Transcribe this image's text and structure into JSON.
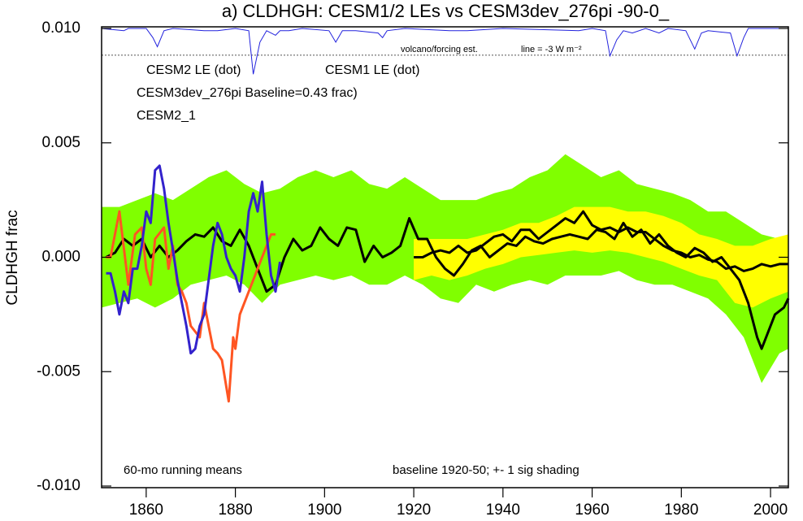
{
  "chart_data": {
    "type": "line",
    "title": "a) CLDHGH: CESM1/2 LEs vs CESM3dev_276pi -90-0_",
    "y_label": "CLDHGH frac",
    "xlim": [
      1850,
      2004
    ],
    "ylim": [
      -0.01,
      0.01
    ],
    "xticks": [
      1860,
      1880,
      1900,
      1920,
      1940,
      1960,
      1980,
      2000
    ],
    "yticks": [
      {
        "value": -0.01,
        "label": "-0.010"
      },
      {
        "value": -0.005,
        "label": "-0.005"
      },
      {
        "value": 0,
        "label": "0.000"
      },
      {
        "value": 0.005,
        "label": "0.005"
      },
      {
        "value": 0.01,
        "label": "0.010"
      }
    ],
    "annotations": [
      "60-mo running means",
      "baseline 1920-50; +- 1 sig shading",
      "volcano/forcing est.",
      "line = -3 W m⁻²"
    ],
    "bands": [
      {
        "name": "CESM2 LE (dot)",
        "color": "#80ff00",
        "x": [
          1850,
          1854,
          1858,
          1862,
          1866,
          1870,
          1874,
          1878,
          1882,
          1886,
          1890,
          1894,
          1898,
          1902,
          1906,
          1910,
          1914,
          1918,
          1922,
          1926,
          1930,
          1934,
          1938,
          1942,
          1946,
          1950,
          1954,
          1958,
          1962,
          1966,
          1970,
          1974,
          1978,
          1982,
          1986,
          1990,
          1994,
          1998,
          2002,
          2004
        ],
        "upper": [
          0.0022,
          0.0022,
          0.0025,
          0.0028,
          0.0025,
          0.003,
          0.0035,
          0.0038,
          0.0032,
          0.0028,
          0.003,
          0.0035,
          0.0038,
          0.0035,
          0.0038,
          0.0032,
          0.003,
          0.0035,
          0.003,
          0.0025,
          0.0025,
          0.0025,
          0.0028,
          0.003,
          0.0035,
          0.0038,
          0.0045,
          0.004,
          0.0035,
          0.0038,
          0.0032,
          0.003,
          0.0028,
          0.0025,
          0.002,
          0.002,
          0.0015,
          0.001,
          0.0008,
          0.0008
        ],
        "lower": [
          -0.0022,
          -0.002,
          -0.0018,
          -0.0022,
          -0.0018,
          -0.0012,
          -0.001,
          -0.0008,
          -0.0012,
          -0.002,
          -0.0012,
          -0.001,
          -0.0008,
          -0.001,
          -0.0008,
          -0.0012,
          -0.0012,
          -0.0008,
          -0.0012,
          -0.0018,
          -0.002,
          -0.0012,
          -0.0015,
          -0.0012,
          -0.001,
          -0.0012,
          -0.0008,
          -0.0008,
          -0.0008,
          -0.0006,
          -0.001,
          -0.0012,
          -0.0012,
          -0.0015,
          -0.0018,
          -0.0025,
          -0.0035,
          -0.0055,
          -0.0042,
          -0.004
        ]
      },
      {
        "name": "CESM1 LE (dot)",
        "color": "#ffff00",
        "x": [
          1920,
          1924,
          1928,
          1932,
          1936,
          1940,
          1944,
          1948,
          1952,
          1956,
          1960,
          1964,
          1968,
          1972,
          1976,
          1980,
          1984,
          1988,
          1992,
          1996,
          2000,
          2004
        ],
        "upper": [
          0.0008,
          0.0008,
          0.0008,
          0.0008,
          0.001,
          0.0012,
          0.0015,
          0.0015,
          0.0018,
          0.0022,
          0.0022,
          0.0022,
          0.002,
          0.002,
          0.0018,
          0.0015,
          0.001,
          0.0008,
          0.0005,
          0.0005,
          0.0008,
          0.001
        ],
        "lower": [
          -0.001,
          -0.0008,
          -0.001,
          -0.0008,
          -0.0005,
          -0.0003,
          0,
          0.0001,
          0.0002,
          0.0003,
          0.0002,
          0.0003,
          0.0002,
          0,
          -0.0002,
          -0.0005,
          -0.0008,
          -0.001,
          -0.002,
          -0.0022,
          -0.0018,
          -0.0015
        ]
      }
    ],
    "series": [
      {
        "color": "#000000",
        "x": [
          1851,
          1853,
          1855,
          1857,
          1859,
          1861,
          1863,
          1865,
          1867,
          1869,
          1871,
          1873,
          1875,
          1877,
          1879,
          1881,
          1883,
          1885,
          1887,
          1889,
          1891,
          1893,
          1895,
          1897,
          1899,
          1901,
          1903,
          1905,
          1907,
          1909,
          1911,
          1913,
          1915,
          1917,
          1919,
          1921,
          1923,
          1925,
          1927,
          1929,
          1931,
          1933,
          1935,
          1937,
          1939,
          1941,
          1943,
          1945,
          1947,
          1949,
          1951,
          1953,
          1955,
          1957,
          1959,
          1961,
          1963,
          1965,
          1967,
          1969,
          1971,
          1973,
          1975,
          1977,
          1979,
          1981,
          1983,
          1985,
          1987,
          1989,
          1991,
          1993,
          1995,
          1997,
          1998,
          1999,
          2001,
          2003,
          2004
        ],
        "values": [
          0,
          0.0002,
          0.0008,
          0.0005,
          0.0008,
          0,
          0.0005,
          0,
          0.0003,
          0.0007,
          0.001,
          0.0009,
          0.0013,
          0.0007,
          0.0005,
          0.0012,
          0.0005,
          -0.0005,
          -0.0015,
          -0.0012,
          0,
          0.0008,
          0.0003,
          0.0005,
          0.0013,
          0.0008,
          0.0005,
          0.0013,
          0.0012,
          -0.0002,
          0.0005,
          0,
          0.0002,
          0.0005,
          0.0017,
          0.0008,
          0.0008,
          0,
          -0.0005,
          -0.0008,
          -0.0003,
          0.0003,
          0.0005,
          0,
          0.0003,
          0.0006,
          0.0005,
          0.0009,
          0.0007,
          0.0006,
          0.0008,
          0.0009,
          0.001,
          0.0009,
          0.0008,
          0.0012,
          0.0011,
          0.0008,
          0.0015,
          0.0009,
          0.0012,
          0.0006,
          0.001,
          0.0005,
          0.0002,
          0,
          0.0004,
          0.0002,
          -0.0002,
          0,
          -0.0005,
          -0.001,
          -0.002,
          -0.0035,
          -0.004,
          -0.0035,
          -0.0025,
          -0.0022,
          -0.0018
        ]
      },
      {
        "color": "#000000",
        "x": [
          1920,
          1922,
          1924,
          1926,
          1928,
          1930,
          1932,
          1934,
          1936,
          1938,
          1940,
          1942,
          1944,
          1946,
          1948,
          1950,
          1952,
          1954,
          1956,
          1958,
          1960,
          1962,
          1964,
          1966,
          1968,
          1970,
          1972,
          1974,
          1976,
          1978,
          1980,
          1982,
          1984,
          1986,
          1988,
          1990,
          1992,
          1994,
          1996,
          1998,
          2000,
          2002,
          2004
        ],
        "values": [
          0,
          0,
          0.0002,
          0.0003,
          0.0002,
          0.0005,
          0.0002,
          0.0003,
          0.0006,
          0.0009,
          0.001,
          0.0007,
          0.0012,
          0.0012,
          0.0008,
          0.0011,
          0.0014,
          0.0017,
          0.0015,
          0.002,
          0.0014,
          0.0012,
          0.0013,
          0.0011,
          0.0013,
          0.0011,
          0.0011,
          0.0008,
          0.0005,
          0.0003,
          0.0002,
          0,
          0.0001,
          -0.0001,
          -0.0002,
          -0.0005,
          -0.0004,
          -0.0006,
          -0.0005,
          -0.0003,
          -0.0004,
          -0.0003,
          -0.0003
        ]
      },
      {
        "name": "CESM3dev_276pi Baseline=0.43 frac)",
        "color": "#ff5522",
        "x": [
          1851,
          1852,
          1854,
          1856,
          1857.5,
          1859,
          1860,
          1861,
          1862,
          1864,
          1865,
          1866,
          1867,
          1868,
          1869,
          1870,
          1872,
          1873,
          1874,
          1875,
          1876,
          1877,
          1878.5,
          1879.5,
          1880,
          1881,
          1883,
          1885,
          1887,
          1888,
          1889
        ],
        "values": [
          0,
          0,
          0.002,
          -0.0012,
          0.001,
          0.0013,
          -0.0005,
          -0.0012,
          0.0008,
          0.0013,
          -0.0005,
          0.0005,
          -0.0012,
          -0.0015,
          -0.002,
          -0.003,
          -0.0035,
          -0.002,
          -0.003,
          -0.004,
          -0.0042,
          -0.0045,
          -0.0063,
          -0.0035,
          -0.004,
          -0.0025,
          -0.0015,
          -0.0005,
          0.0005,
          0.001,
          0.001
        ]
      },
      {
        "name": "CESM2_1",
        "color": "#3322cc",
        "x": [
          1851,
          1852,
          1853,
          1854,
          1855,
          1856,
          1857,
          1858,
          1859,
          1860,
          1861,
          1862,
          1863,
          1864,
          1865,
          1866,
          1867,
          1868,
          1869,
          1870,
          1871,
          1872,
          1873,
          1874,
          1875,
          1876,
          1877,
          1878,
          1879,
          1880,
          1881,
          1882,
          1883,
          1884,
          1885,
          1886,
          1887,
          1888,
          1889,
          1890
        ],
        "values": [
          -0.0007,
          -0.0007,
          -0.0015,
          -0.0025,
          -0.0015,
          -0.002,
          -0.0005,
          -0.0005,
          0.0005,
          0.002,
          0.0015,
          0.0038,
          0.004,
          0.003,
          0.0015,
          0.0003,
          -0.001,
          -0.002,
          -0.003,
          -0.0042,
          -0.004,
          -0.003,
          -0.0025,
          -0.001,
          0.0005,
          0.0015,
          0.001,
          0,
          -0.0005,
          -0.0008,
          -0.0015,
          0,
          0.002,
          0.0028,
          0.002,
          0.0033,
          0.001,
          -0.0008,
          -0.0015,
          -0.0002
        ]
      }
    ],
    "forcing": {
      "color": "#2222dd",
      "ref_line": 0.00883,
      "x": [
        1850,
        1855,
        1856,
        1860,
        1861.5,
        1862.5,
        1864,
        1866,
        1873,
        1876,
        1880,
        1883,
        1884,
        1885.5,
        1887,
        1889,
        1890,
        1892,
        1895,
        1901,
        1902.5,
        1904,
        1907,
        1912,
        1913,
        1914,
        1918,
        1928,
        1932,
        1940,
        1957,
        1960,
        1963,
        1964,
        1965.5,
        1967,
        1969,
        1972,
        1975,
        1977,
        1981,
        1983,
        1984.5,
        1986,
        1991,
        1992.5,
        1994,
        1995,
        2004
      ],
      "values": [
        0.01,
        0.0099,
        0.01,
        0.01,
        0.0096,
        0.0092,
        0.0099,
        0.01,
        0.0099,
        0.0099,
        0.01,
        0.0099,
        0.008,
        0.0094,
        0.0099,
        0.0097,
        0.0099,
        0.0099,
        0.01,
        0.0099,
        0.0094,
        0.0099,
        0.0099,
        0.0098,
        0.0096,
        0.0099,
        0.01,
        0.0099,
        0.0099,
        0.01,
        0.0099,
        0.01,
        0.0099,
        0.0088,
        0.0095,
        0.0099,
        0.0098,
        0.01,
        0.0098,
        0.01,
        0.0099,
        0.0091,
        0.0098,
        0.0099,
        0.0098,
        0.0088,
        0.0096,
        0.01,
        0.01
      ]
    }
  }
}
